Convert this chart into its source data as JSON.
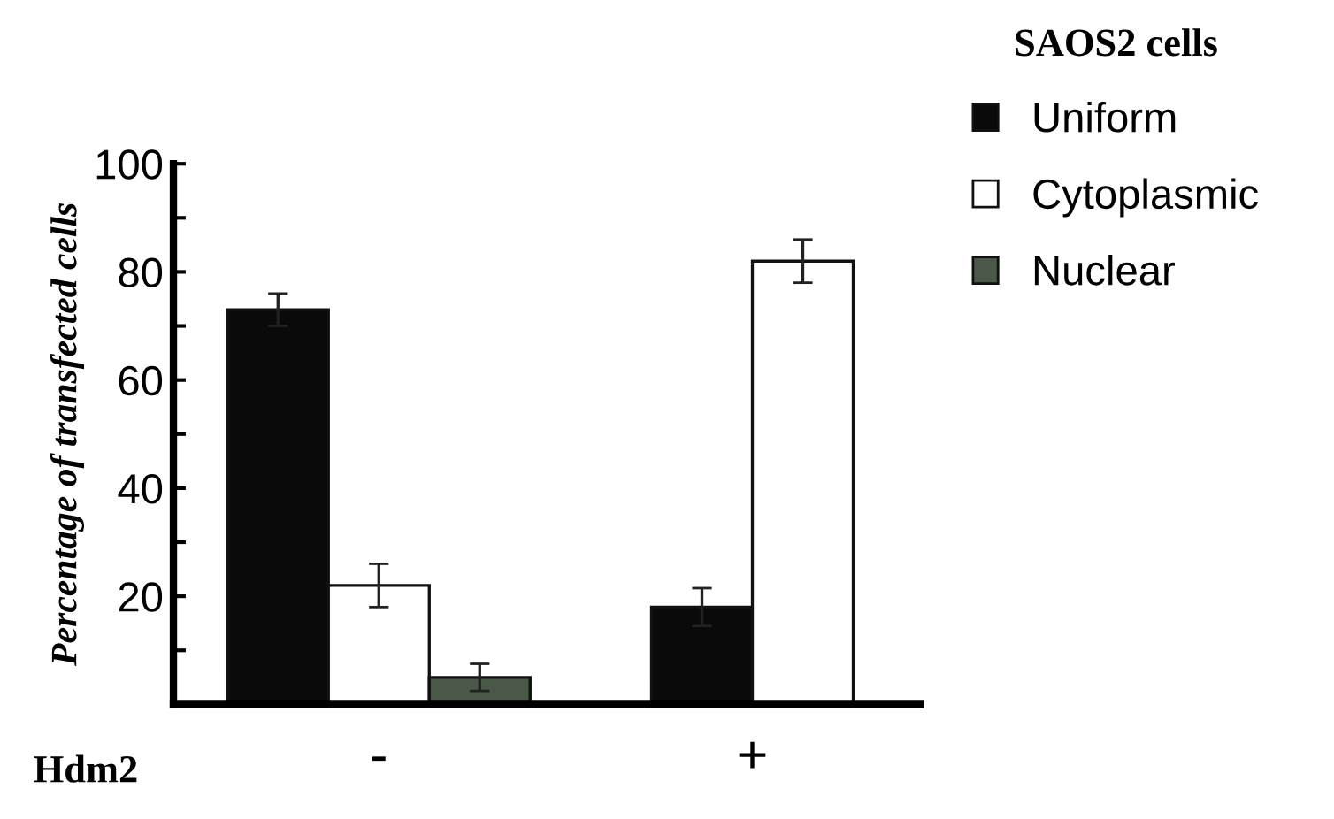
{
  "chart_data": {
    "type": "bar",
    "ylabel": "Percentage of transfected cells",
    "xlabel": "Hdm2",
    "legend_title": "SAOS2 cells",
    "legend": "right",
    "grid": false,
    "categories": [
      "-",
      "+"
    ],
    "series": [
      {
        "name": "Uniform",
        "color": "#0a0a0a",
        "values": [
          73,
          18
        ],
        "errors": [
          3,
          3.5
        ]
      },
      {
        "name": "Cytoplasmic",
        "color": "#ffffff",
        "values": [
          22,
          82
        ],
        "errors": [
          4,
          4
        ]
      },
      {
        "name": "Nuclear",
        "color": "#4a5848",
        "values": [
          5,
          null
        ],
        "errors": [
          2.5,
          null
        ]
      }
    ],
    "ylim": [
      0,
      100
    ],
    "yticks": [
      {
        "value": 10,
        "label": null
      },
      20,
      {
        "value": 30,
        "label": null
      },
      40,
      {
        "value": 50,
        "label": null
      },
      60,
      {
        "value": 70,
        "label": null
      },
      80,
      {
        "value": 90,
        "label": null
      },
      100
    ]
  }
}
